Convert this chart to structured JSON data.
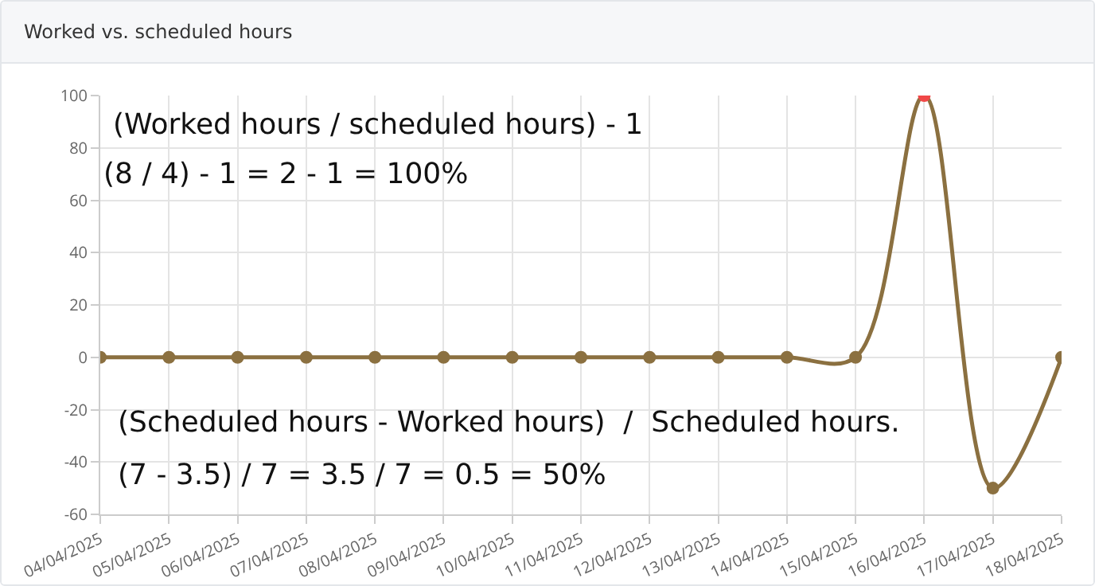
{
  "chart_data": {
    "type": "line",
    "title": "Worked vs. scheduled hours",
    "categories": [
      "04/04/2025",
      "05/04/2025",
      "06/04/2025",
      "07/04/2025",
      "08/04/2025",
      "09/04/2025",
      "10/04/2025",
      "11/04/2025",
      "12/04/2025",
      "13/04/2025",
      "14/04/2025",
      "15/04/2025",
      "16/04/2025",
      "17/04/2025",
      "18/04/2025"
    ],
    "series": [
      {
        "color": "#8b7040",
        "values": [
          0,
          0,
          0,
          0,
          0,
          0,
          0,
          0,
          0,
          0,
          0,
          0,
          100,
          -50,
          0
        ],
        "colors": [
          "#8b7040",
          "#8b7040",
          "#8b7040",
          "#8b7040",
          "#8b7040",
          "#8b7040",
          "#8b7040",
          "#8b7040",
          "#8b7040",
          "#8b7040",
          "#8b7040",
          "#8b7040",
          "#f04848",
          "#8b7040",
          "#8b7040"
        ]
      }
    ],
    "ylim": [
      -60,
      100
    ],
    "yticks": [
      -60,
      -40,
      -20,
      0,
      20,
      40,
      60,
      80,
      100
    ],
    "grid": true,
    "marker": "circle",
    "line_style": "solid",
    "annotations": [
      "(Worked hours / scheduled hours) - 1",
      "(8 / 4) - 1 = 2 - 1 = 100%",
      "(Scheduled hours - Worked hours)  /  Scheduled hours.",
      "(7 - 3.5) / 7 = 3.5 / 7 = 0.5 = 50%"
    ]
  }
}
